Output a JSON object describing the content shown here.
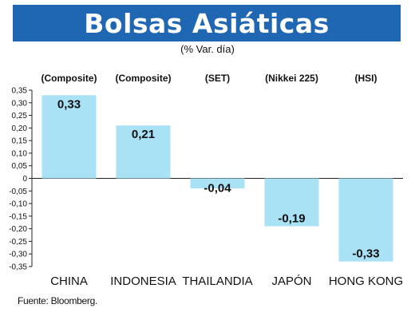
{
  "header": {
    "title": "Bolsas Asiáticas",
    "subtitle": "(% Var. día)"
  },
  "source": "Fuente: Bloomberg.",
  "colors": {
    "banner": "#1f67b3",
    "bar": "#a9e2f5"
  },
  "chart_data": {
    "type": "bar",
    "title": "Bolsas Asiáticas",
    "subtitle": "(% Var. día)",
    "categories": [
      "CHINA",
      "INDONESIA",
      "THAILANDIA",
      "JAPÓN",
      "HONG KONG"
    ],
    "group_labels": [
      "(Composite)",
      "(Composite)",
      "(SET)",
      "(Nikkei 225)",
      "(HSI)"
    ],
    "values": [
      0.33,
      0.21,
      -0.04,
      -0.19,
      -0.33
    ],
    "value_labels": [
      "0,33",
      "0,21",
      "-0,04",
      "-0,19",
      "-0,33"
    ],
    "ylim": [
      -0.35,
      0.35
    ],
    "yticks": [
      0.35,
      0.3,
      0.25,
      0.2,
      0.15,
      0.1,
      0.05,
      0,
      -0.05,
      -0.1,
      -0.15,
      -0.2,
      -0.25,
      -0.3,
      -0.35
    ],
    "ytick_labels": [
      "0,35",
      "0,30",
      "0,25",
      "0,20",
      "0,15",
      "0,10",
      "0,05",
      "0",
      "-0,05",
      "-0,10",
      "-0,15",
      "-0,20",
      "-0,25",
      "-0,30",
      "-0,35"
    ],
    "xlabel": "",
    "ylabel": "",
    "grid": false,
    "legend": "none"
  }
}
